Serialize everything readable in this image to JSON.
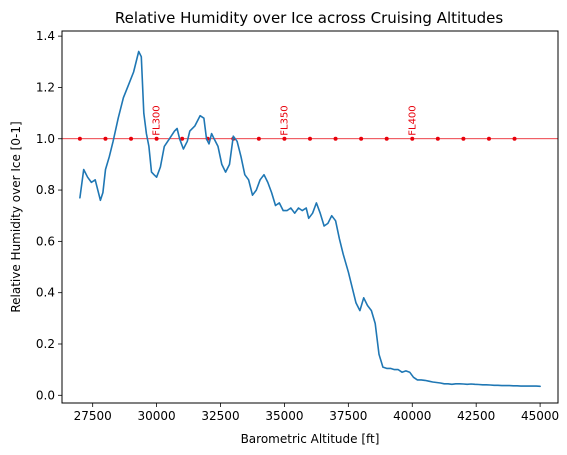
{
  "chart_data": {
    "type": "line",
    "title": "Relative Humidity over Ice across Cruising Altitudes",
    "xlabel": "Barometric Altitude [ft]",
    "ylabel": "Relative Humidity over Ice [0-1]",
    "xlim": [
      26300,
      45700
    ],
    "ylim": [
      -0.03,
      1.42
    ],
    "xticks": [
      27500,
      30000,
      32500,
      35000,
      37500,
      40000,
      42500,
      45000
    ],
    "xtick_labels": [
      "27500",
      "30000",
      "32500",
      "35000",
      "37500",
      "40000",
      "42500",
      "45000"
    ],
    "yticks": [
      0.0,
      0.2,
      0.4,
      0.6,
      0.8,
      1.0,
      1.2,
      1.4
    ],
    "ytick_labels": [
      "0.0",
      "0.2",
      "0.4",
      "0.6",
      "0.8",
      "1.0",
      "1.2",
      "1.4"
    ],
    "grid": false,
    "colors": {
      "series": "#1f77b4",
      "reference": "#e8000b"
    },
    "series": [
      {
        "x": [
          27000,
          27150,
          27300,
          27450,
          27600,
          27800,
          27900,
          28000,
          28150,
          28300,
          28500,
          28700,
          28900,
          29100,
          29300,
          29400,
          29500,
          29600,
          29700,
          29800,
          29900,
          30000,
          30150,
          30300,
          30500,
          30700,
          30800,
          30900,
          31050,
          31200,
          31300,
          31500,
          31700,
          31850,
          31950,
          32050,
          32150,
          32250,
          32400,
          32550,
          32700,
          32850,
          33000,
          33150,
          33300,
          33450,
          33600,
          33750,
          33900,
          34050,
          34200,
          34350,
          34500,
          34650,
          34800,
          34950,
          35100,
          35250,
          35400,
          35550,
          35700,
          35850,
          35950,
          36100,
          36250,
          36400,
          36550,
          36700,
          36850,
          37000,
          37150,
          37300,
          37500,
          37650,
          37800,
          37950,
          38100,
          38250,
          38400,
          38550,
          38700,
          38850,
          39000,
          39150,
          39300,
          39450,
          39600,
          39750,
          39900,
          40050,
          40200,
          40350,
          40500,
          40650,
          40800,
          40950,
          41100,
          41250,
          41400,
          41550,
          41700,
          41850,
          42000,
          42150,
          42300,
          42450,
          42600,
          42750,
          42900,
          43050,
          43200,
          43350,
          43500,
          43650,
          43800,
          43950,
          44100,
          44250,
          44400,
          44550,
          44700,
          44850,
          45000
        ],
        "y": [
          0.77,
          0.88,
          0.85,
          0.83,
          0.84,
          0.76,
          0.79,
          0.88,
          0.93,
          0.99,
          1.08,
          1.16,
          1.21,
          1.26,
          1.34,
          1.32,
          1.1,
          1.02,
          0.97,
          0.87,
          0.86,
          0.85,
          0.89,
          0.97,
          1.0,
          1.03,
          1.04,
          1.0,
          0.96,
          0.99,
          1.03,
          1.05,
          1.09,
          1.08,
          1.0,
          0.98,
          1.02,
          1.0,
          0.97,
          0.9,
          0.87,
          0.9,
          1.01,
          0.99,
          0.93,
          0.86,
          0.84,
          0.78,
          0.8,
          0.84,
          0.86,
          0.83,
          0.79,
          0.74,
          0.75,
          0.72,
          0.72,
          0.73,
          0.71,
          0.73,
          0.72,
          0.73,
          0.69,
          0.71,
          0.75,
          0.71,
          0.66,
          0.67,
          0.7,
          0.68,
          0.61,
          0.55,
          0.48,
          0.42,
          0.36,
          0.33,
          0.38,
          0.35,
          0.33,
          0.28,
          0.16,
          0.11,
          0.105,
          0.105,
          0.1,
          0.1,
          0.09,
          0.095,
          0.09,
          0.07,
          0.06,
          0.06,
          0.058,
          0.055,
          0.052,
          0.05,
          0.048,
          0.045,
          0.045,
          0.043,
          0.045,
          0.045,
          0.044,
          0.043,
          0.044,
          0.043,
          0.042,
          0.041,
          0.041,
          0.04,
          0.039,
          0.039,
          0.038,
          0.038,
          0.038,
          0.037,
          0.037,
          0.036,
          0.036,
          0.036,
          0.036,
          0.036,
          0.035
        ]
      }
    ],
    "reference_line": {
      "y": 1.0
    },
    "markers": {
      "x": [
        27000,
        28000,
        29000,
        30000,
        31000,
        32000,
        33000,
        34000,
        35000,
        36000,
        37000,
        38000,
        39000,
        40000,
        41000,
        42000,
        43000,
        44000
      ],
      "y": 1.0
    },
    "annotations": [
      {
        "x": 30000,
        "text": "FL300"
      },
      {
        "x": 35000,
        "text": "FL350"
      },
      {
        "x": 40000,
        "text": "FL400"
      }
    ]
  }
}
